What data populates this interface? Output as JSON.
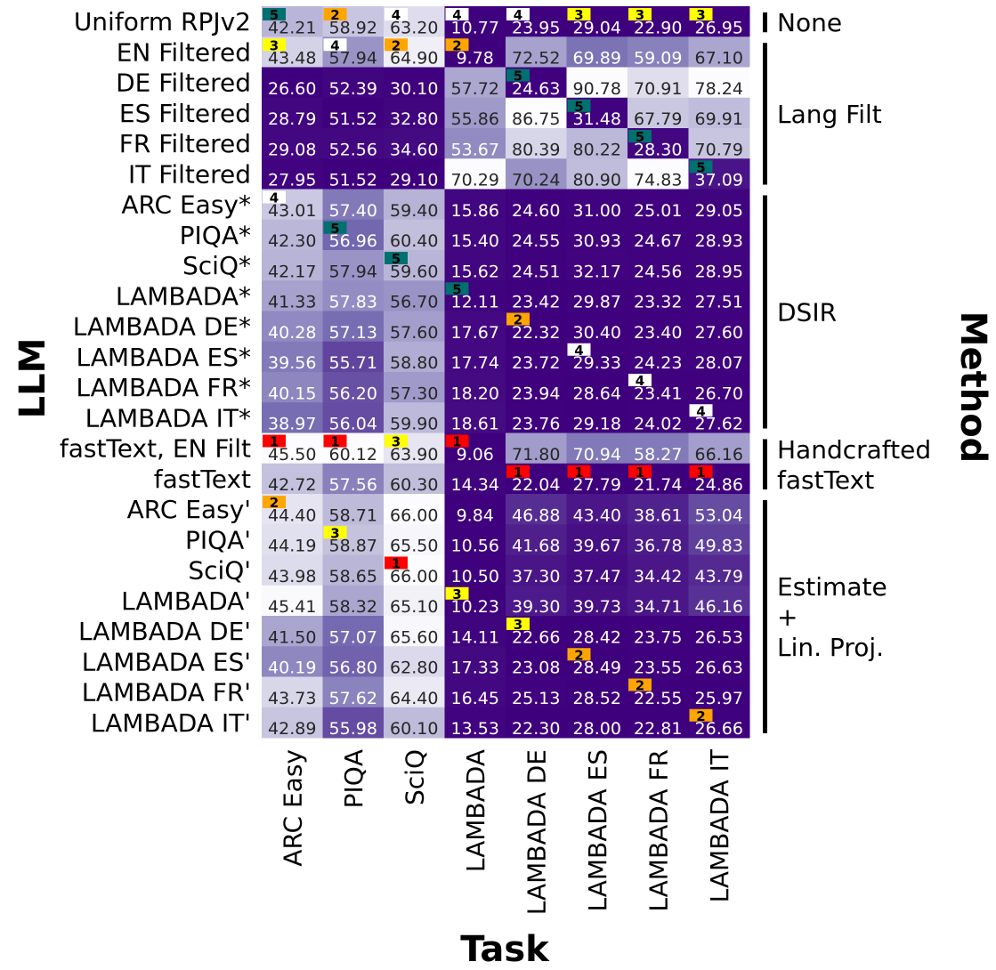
{
  "chart_data": {
    "type": "heatmap",
    "title": "",
    "xlabel": "Task",
    "ylabel": "LLM",
    "group_axis_label": "Method",
    "columns": [
      "ARC Easy",
      "PIQA",
      "SciQ",
      "LAMBADA",
      "LAMBADA DE",
      "LAMBADA ES",
      "LAMBADA FR",
      "LAMBADA IT"
    ],
    "rows": [
      "Uniform RPJv2",
      "EN Filtered",
      "DE Filtered",
      "ES Filtered",
      "FR Filtered",
      "IT Filtered",
      "ARC Easy*",
      "PIQA*",
      "SciQ*",
      "LAMBADA*",
      "LAMBADA DE*",
      "LAMBADA ES*",
      "LAMBADA FR*",
      "LAMBADA IT*",
      "fastText, EN Filt",
      "fastText",
      "ARC Easy'",
      "PIQA'",
      "SciQ'",
      "LAMBADA'",
      "LAMBADA DE'",
      "LAMBADA ES'",
      "LAMBADA FR'",
      "LAMBADA IT'"
    ],
    "values": [
      [
        "42.21",
        "58.92",
        "63.20",
        "10.77",
        "23.95",
        "29.04",
        "22.90",
        "26.95"
      ],
      [
        "43.48",
        "57.94",
        "64.90",
        "9.78",
        "72.52",
        "69.89",
        "59.09",
        "67.10"
      ],
      [
        "26.60",
        "52.39",
        "30.10",
        "57.72",
        "24.63",
        "90.78",
        "70.91",
        "78.24"
      ],
      [
        "28.79",
        "51.52",
        "32.80",
        "55.86",
        "86.75",
        "31.48",
        "67.79",
        "69.91"
      ],
      [
        "29.08",
        "52.56",
        "34.60",
        "53.67",
        "80.39",
        "80.22",
        "28.30",
        "70.79"
      ],
      [
        "27.95",
        "51.52",
        "29.10",
        "70.29",
        "70.24",
        "80.90",
        "74.83",
        "37.09"
      ],
      [
        "43.01",
        "57.40",
        "59.40",
        "15.86",
        "24.60",
        "31.00",
        "25.01",
        "29.05"
      ],
      [
        "42.30",
        "56.96",
        "60.40",
        "15.40",
        "24.55",
        "30.93",
        "24.67",
        "28.93"
      ],
      [
        "42.17",
        "57.94",
        "59.60",
        "15.62",
        "24.51",
        "32.17",
        "24.56",
        "28.95"
      ],
      [
        "41.33",
        "57.83",
        "56.70",
        "12.11",
        "23.42",
        "29.87",
        "23.32",
        "27.51"
      ],
      [
        "40.28",
        "57.13",
        "57.60",
        "17.67",
        "22.32",
        "30.40",
        "23.40",
        "27.60"
      ],
      [
        "39.56",
        "55.71",
        "58.80",
        "17.74",
        "23.72",
        "29.33",
        "24.23",
        "28.07"
      ],
      [
        "40.15",
        "56.20",
        "57.30",
        "18.20",
        "23.94",
        "28.64",
        "23.41",
        "26.70"
      ],
      [
        "38.97",
        "56.04",
        "59.90",
        "18.61",
        "23.76",
        "29.18",
        "24.02",
        "27.62"
      ],
      [
        "45.50",
        "60.12",
        "63.90",
        "9.06",
        "71.80",
        "70.94",
        "58.27",
        "66.16"
      ],
      [
        "42.72",
        "57.56",
        "60.30",
        "14.34",
        "22.04",
        "27.79",
        "21.74",
        "24.86"
      ],
      [
        "44.40",
        "58.71",
        "66.00",
        "9.84",
        "46.88",
        "43.40",
        "38.61",
        "53.04"
      ],
      [
        "44.19",
        "58.87",
        "65.50",
        "10.56",
        "41.68",
        "39.67",
        "36.78",
        "49.83"
      ],
      [
        "43.98",
        "58.65",
        "66.00",
        "10.50",
        "37.30",
        "37.47",
        "34.42",
        "43.79"
      ],
      [
        "45.41",
        "58.32",
        "65.10",
        "10.23",
        "39.30",
        "39.73",
        "34.71",
        "46.16"
      ],
      [
        "41.50",
        "57.07",
        "65.60",
        "14.11",
        "22.66",
        "28.42",
        "23.75",
        "26.53"
      ],
      [
        "40.19",
        "56.80",
        "62.80",
        "17.33",
        "23.08",
        "28.49",
        "23.55",
        "26.63"
      ],
      [
        "43.73",
        "57.62",
        "64.40",
        "16.45",
        "25.13",
        "28.52",
        "22.55",
        "25.97"
      ],
      [
        "42.89",
        "55.98",
        "60.10",
        "13.53",
        "22.30",
        "28.00",
        "22.81",
        "26.66"
      ]
    ],
    "ranks": [
      [
        5,
        2,
        4,
        4,
        4,
        3,
        3,
        3
      ],
      [
        3,
        4,
        2,
        2,
        null,
        null,
        null,
        null
      ],
      [
        null,
        null,
        null,
        null,
        5,
        null,
        null,
        null
      ],
      [
        null,
        null,
        null,
        null,
        null,
        5,
        null,
        null
      ],
      [
        null,
        null,
        null,
        null,
        null,
        null,
        5,
        null
      ],
      [
        null,
        null,
        null,
        null,
        null,
        null,
        null,
        5
      ],
      [
        4,
        null,
        null,
        null,
        null,
        null,
        null,
        null
      ],
      [
        null,
        5,
        null,
        null,
        null,
        null,
        null,
        null
      ],
      [
        null,
        null,
        5,
        null,
        null,
        null,
        null,
        null
      ],
      [
        null,
        null,
        null,
        5,
        null,
        null,
        null,
        null
      ],
      [
        null,
        null,
        null,
        null,
        2,
        null,
        null,
        null
      ],
      [
        null,
        null,
        null,
        null,
        null,
        4,
        null,
        null
      ],
      [
        null,
        null,
        null,
        null,
        null,
        null,
        4,
        null
      ],
      [
        null,
        null,
        null,
        null,
        null,
        null,
        null,
        4
      ],
      [
        1,
        1,
        3,
        1,
        null,
        null,
        null,
        null
      ],
      [
        null,
        null,
        null,
        null,
        1,
        1,
        1,
        1
      ],
      [
        2,
        null,
        null,
        null,
        null,
        null,
        null,
        null
      ],
      [
        null,
        3,
        null,
        null,
        null,
        null,
        null,
        null
      ],
      [
        null,
        null,
        1,
        null,
        null,
        null,
        null,
        null
      ],
      [
        null,
        null,
        null,
        3,
        null,
        null,
        null,
        null
      ],
      [
        null,
        null,
        null,
        null,
        3,
        null,
        null,
        null
      ],
      [
        null,
        null,
        null,
        null,
        null,
        2,
        null,
        null
      ],
      [
        null,
        null,
        null,
        null,
        null,
        null,
        2,
        null
      ],
      [
        null,
        null,
        null,
        null,
        null,
        null,
        null,
        2
      ]
    ],
    "rank_colors": {
      "1": "#ff0000",
      "2": "#ffa500",
      "3": "#ffff00",
      "4": "#ffffff",
      "5": "#007070"
    },
    "colormap": "Purples_r",
    "column_ranges": [
      [
        26.6,
        45.5
      ],
      [
        51.52,
        60.12
      ],
      [
        29.1,
        66.0
      ],
      [
        9.06,
        70.29
      ],
      [
        22.04,
        86.75
      ],
      [
        27.79,
        90.78
      ],
      [
        21.74,
        74.83
      ],
      [
        24.86,
        78.24
      ]
    ],
    "groups": [
      {
        "lines": [
          "None"
        ],
        "first_row": 0,
        "last_row": 0
      },
      {
        "lines": [
          "Lang Filt"
        ],
        "first_row": 1,
        "last_row": 5
      },
      {
        "lines": [
          "DSIR"
        ],
        "first_row": 6,
        "last_row": 13
      },
      {
        "lines": [
          "Handcrafted",
          "fastText"
        ],
        "first_row": 14,
        "last_row": 15
      },
      {
        "lines": [
          "Estimate",
          "+",
          "Lin. Proj."
        ],
        "first_row": 16,
        "last_row": 23
      }
    ]
  }
}
